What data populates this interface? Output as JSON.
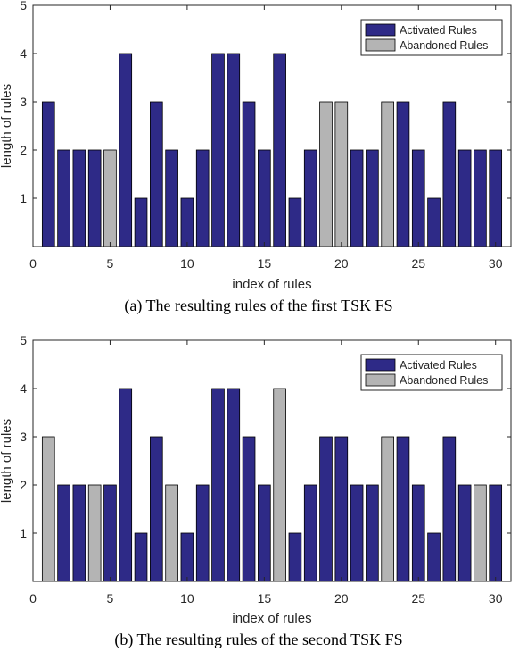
{
  "colors": {
    "activated": "#2e2a87",
    "abandoned": "#b4b4b4",
    "axis": "#262626"
  },
  "chart_data": [
    {
      "type": "bar",
      "caption": "(a) The resulting rules of the first TSK FS",
      "xlabel": "index of rules",
      "ylabel": "length of rules",
      "xlim": [
        0,
        31
      ],
      "ylim": [
        0,
        5
      ],
      "xticks": [
        0,
        5,
        10,
        15,
        20,
        25,
        30
      ],
      "yticks": [
        1,
        2,
        3,
        4,
        5
      ],
      "grid": false,
      "legend_position": "top-right",
      "legend": [
        "Activated Rules",
        "Abandoned Rules"
      ],
      "x": [
        1,
        2,
        3,
        4,
        5,
        6,
        7,
        8,
        9,
        10,
        11,
        12,
        13,
        14,
        15,
        16,
        17,
        18,
        19,
        20,
        21,
        22,
        23,
        24,
        25,
        26,
        27,
        28,
        29,
        30
      ],
      "values": [
        3,
        2,
        2,
        2,
        2,
        4,
        1,
        3,
        2,
        1,
        2,
        4,
        4,
        3,
        2,
        4,
        1,
        2,
        3,
        3,
        2,
        2,
        3,
        3,
        2,
        1,
        3,
        2,
        2,
        2
      ],
      "status": [
        "Activated Rules",
        "Activated Rules",
        "Activated Rules",
        "Activated Rules",
        "Abandoned Rules",
        "Activated Rules",
        "Activated Rules",
        "Activated Rules",
        "Activated Rules",
        "Activated Rules",
        "Activated Rules",
        "Activated Rules",
        "Activated Rules",
        "Activated Rules",
        "Activated Rules",
        "Activated Rules",
        "Activated Rules",
        "Activated Rules",
        "Abandoned Rules",
        "Abandoned Rules",
        "Activated Rules",
        "Activated Rules",
        "Abandoned Rules",
        "Activated Rules",
        "Activated Rules",
        "Activated Rules",
        "Activated Rules",
        "Activated Rules",
        "Activated Rules",
        "Activated Rules"
      ]
    },
    {
      "type": "bar",
      "caption": "(b) The resulting rules of the second TSK FS",
      "xlabel": "index of rules",
      "ylabel": "length of rules",
      "xlim": [
        0,
        31
      ],
      "ylim": [
        0,
        5
      ],
      "xticks": [
        0,
        5,
        10,
        15,
        20,
        25,
        30
      ],
      "yticks": [
        1,
        2,
        3,
        4,
        5
      ],
      "grid": false,
      "legend_position": "top-right",
      "legend": [
        "Activated Rules",
        "Abandoned Rules"
      ],
      "x": [
        1,
        2,
        3,
        4,
        5,
        6,
        7,
        8,
        9,
        10,
        11,
        12,
        13,
        14,
        15,
        16,
        17,
        18,
        19,
        20,
        21,
        22,
        23,
        24,
        25,
        26,
        27,
        28,
        29,
        30
      ],
      "values": [
        3,
        2,
        2,
        2,
        2,
        4,
        1,
        3,
        2,
        1,
        2,
        4,
        4,
        3,
        2,
        4,
        1,
        2,
        3,
        3,
        2,
        2,
        3,
        3,
        2,
        1,
        3,
        2,
        2,
        2
      ],
      "status": [
        "Abandoned Rules",
        "Activated Rules",
        "Activated Rules",
        "Abandoned Rules",
        "Activated Rules",
        "Activated Rules",
        "Activated Rules",
        "Activated Rules",
        "Abandoned Rules",
        "Activated Rules",
        "Activated Rules",
        "Activated Rules",
        "Activated Rules",
        "Activated Rules",
        "Activated Rules",
        "Abandoned Rules",
        "Activated Rules",
        "Activated Rules",
        "Activated Rules",
        "Activated Rules",
        "Activated Rules",
        "Activated Rules",
        "Abandoned Rules",
        "Activated Rules",
        "Activated Rules",
        "Activated Rules",
        "Activated Rules",
        "Activated Rules",
        "Abandoned Rules",
        "Activated Rules"
      ]
    }
  ]
}
